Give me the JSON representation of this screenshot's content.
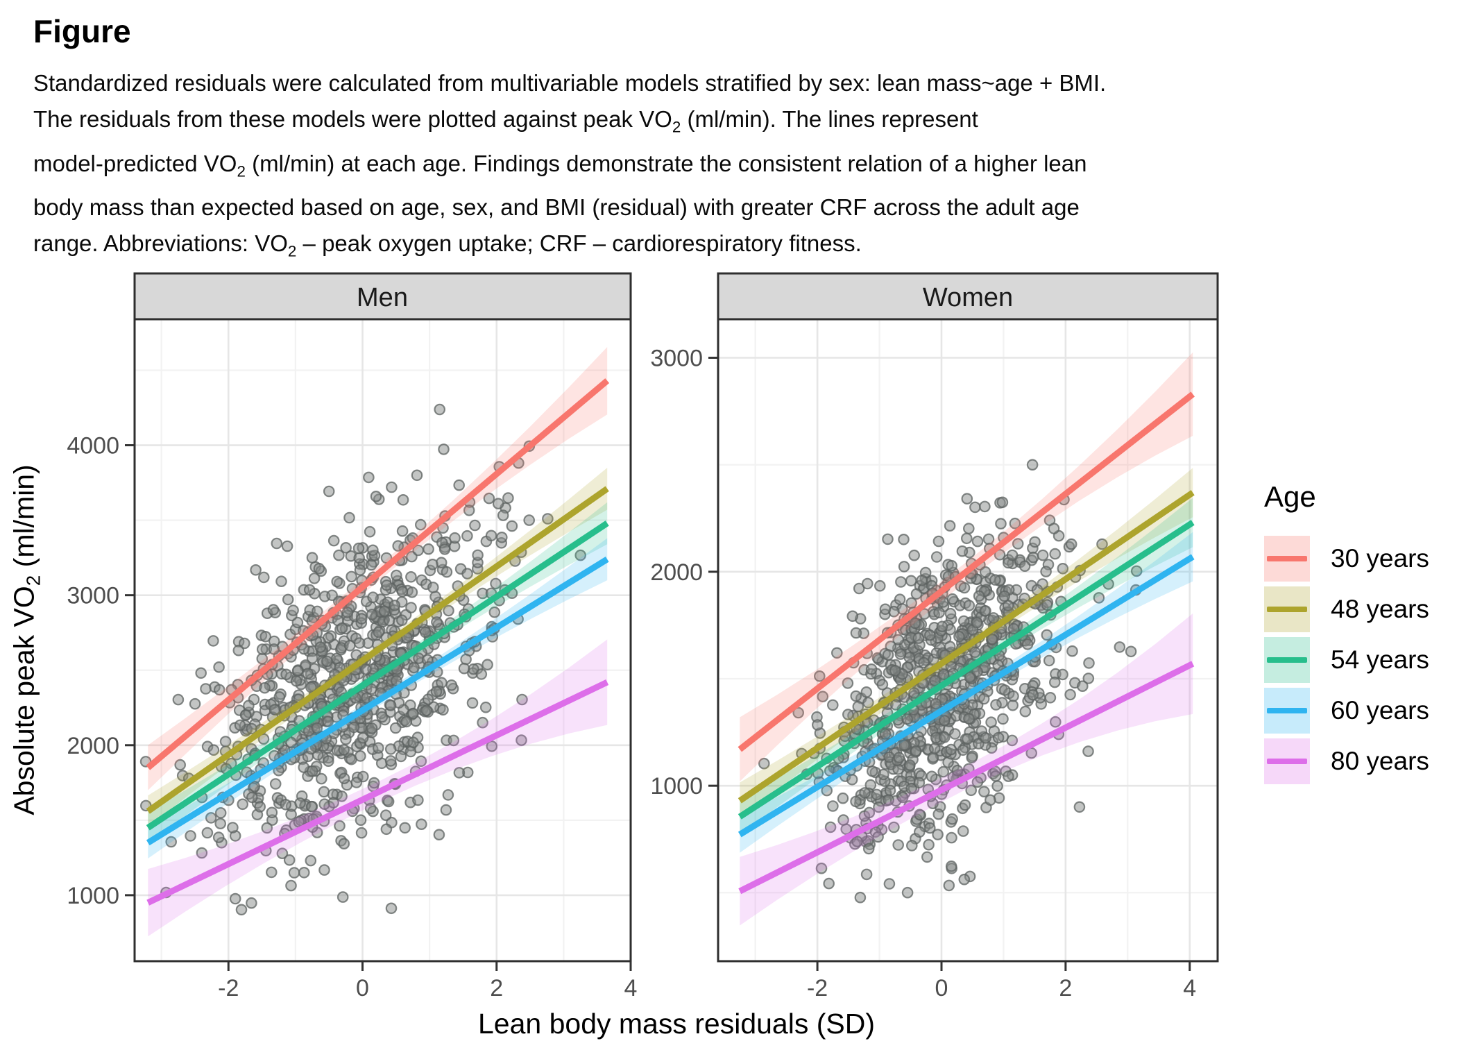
{
  "figure": {
    "title": "Figure",
    "caption_lines": [
      "Standardized residuals were calculated from multivariable models stratified by sex: lean mass~age + BMI.",
      "The residuals from these models were plotted against peak VO2 (ml/min). The lines represent",
      "model-predicted VO2 (ml/min) at each age. Findings demonstrate the consistent relation of a higher lean",
      "body mass than expected based on age, sex, and BMI (residual) with greater CRF across the adult age",
      "range. Abbreviations: VO2 – peak oxygen uptake; CRF – cardiorespiratory fitness."
    ]
  },
  "chart_data": {
    "type": "scatter",
    "xlabel": "Lean body mass residuals (SD)",
    "ylabel": "Absolute peak VO2 (ml/min)",
    "legend": {
      "title": "Age",
      "position": "right",
      "entries": [
        {
          "label": "30 years",
          "color": "#F8766D"
        },
        {
          "label": "48 years",
          "color": "#ADA42D"
        },
        {
          "label": "54 years",
          "color": "#27BE8C"
        },
        {
          "label": "60 years",
          "color": "#2FB4F0"
        },
        {
          "label": "80 years",
          "color": "#DD6EE9"
        }
      ]
    },
    "panels": [
      {
        "label": "Men",
        "xlim": [
          -3.4,
          4.0
        ],
        "ylim": [
          560,
          4840
        ],
        "x_ticks": [
          -2,
          0,
          2,
          4
        ],
        "y_ticks": [
          1000,
          2000,
          3000,
          4000
        ],
        "grid": true,
        "lines": [
          {
            "age": "30 years",
            "color": "#F8766D",
            "x": [
              -3.2,
              3.65
            ],
            "y": [
              1850,
              4430
            ],
            "ribbon_halfwidth": [
              150,
              50,
              225
            ]
          },
          {
            "age": "48 years",
            "color": "#ADA42D",
            "x": [
              -3.2,
              3.65
            ],
            "y": [
              1560,
              3710
            ],
            "ribbon_halfwidth": [
              105,
              38,
              140
            ]
          },
          {
            "age": "54 years",
            "color": "#27BE8C",
            "x": [
              -3.2,
              3.65
            ],
            "y": [
              1450,
              3480
            ],
            "ribbon_halfwidth": [
              105,
              38,
              140
            ]
          },
          {
            "age": "60 years",
            "color": "#2FB4F0",
            "x": [
              -3.2,
              3.65
            ],
            "y": [
              1350,
              3240
            ],
            "ribbon_halfwidth": [
              105,
              38,
              140
            ]
          },
          {
            "age": "80 years",
            "color": "#DD6EE9",
            "x": [
              -3.2,
              3.65
            ],
            "y": [
              950,
              2420
            ],
            "ribbon_halfwidth": [
              225,
              70,
              285
            ]
          }
        ],
        "scatter_summary": {
          "n": 850,
          "x_mean": -0.1,
          "x_sd": 1.05,
          "y_intercept": 2480,
          "y_slope_per_sd": 290,
          "resid_sd": 460,
          "x_clip": [
            -3.3,
            3.7
          ],
          "y_clip": [
            880,
            4250
          ],
          "seed": 12
        }
      },
      {
        "label": "Women",
        "xlim": [
          -3.6,
          4.45
        ],
        "ylim": [
          180,
          3180
        ],
        "x_ticks": [
          -2,
          0,
          2,
          4
        ],
        "y_ticks": [
          1000,
          2000,
          3000
        ],
        "grid": true,
        "lines": [
          {
            "age": "30 years",
            "color": "#F8766D",
            "x": [
              -3.25,
              4.05
            ],
            "y": [
              1170,
              2830
            ],
            "ribbon_halfwidth": [
              150,
              45,
              195
            ]
          },
          {
            "age": "48 years",
            "color": "#ADA42D",
            "x": [
              -3.25,
              4.05
            ],
            "y": [
              930,
              2370
            ],
            "ribbon_halfwidth": [
              85,
              30,
              115
            ]
          },
          {
            "age": "54 years",
            "color": "#27BE8C",
            "x": [
              -3.25,
              4.05
            ],
            "y": [
              855,
              2230
            ],
            "ribbon_halfwidth": [
              85,
              30,
              115
            ]
          },
          {
            "age": "60 years",
            "color": "#2FB4F0",
            "x": [
              -3.25,
              4.05
            ],
            "y": [
              772,
              2070
            ],
            "ribbon_halfwidth": [
              85,
              30,
              115
            ]
          },
          {
            "age": "80 years",
            "color": "#DD6EE9",
            "x": [
              -3.25,
              4.05
            ],
            "y": [
              507,
              1570
            ],
            "ribbon_halfwidth": [
              160,
              55,
              235
            ]
          }
        ],
        "scatter_summary": {
          "n": 850,
          "x_mean": -0.05,
          "x_sd": 1.0,
          "y_intercept": 1450,
          "y_slope_per_sd": 185,
          "resid_sd": 330,
          "x_clip": [
            -3.3,
            4.1
          ],
          "y_clip": [
            420,
            3080
          ],
          "seed": 99
        }
      }
    ]
  },
  "style": {
    "background": "#FFFFFF",
    "strip_fill": "#D8D8D8",
    "panel_border": "#2E2E2E",
    "grid_major": "#E6E6E6",
    "grid_minor": "#F2F2F2",
    "point_fill": "#878C8A",
    "point_stroke": "#5C6160",
    "tick_color": "#333333",
    "tick_label_color": "#4D4D4D",
    "ribbon_opacity": 0.2,
    "legend_key_opacity": 0.27
  }
}
